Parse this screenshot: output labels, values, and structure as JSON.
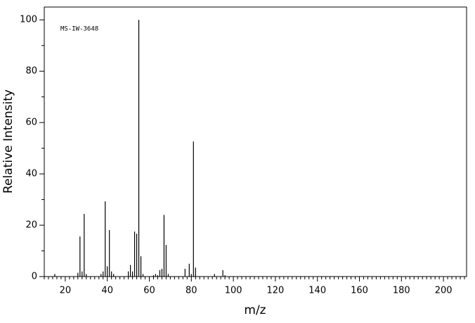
{
  "chart_data": {
    "type": "stem",
    "annotation": "MS-IW-3648",
    "xlabel": "m/z",
    "ylabel": "Relative Intensity",
    "x": [
      15,
      26,
      27,
      28,
      29,
      30,
      37,
      38,
      39,
      40,
      41,
      42,
      43,
      50,
      51,
      52,
      53,
      54,
      55,
      56,
      57,
      62,
      63,
      64,
      65,
      66,
      67,
      68,
      69,
      77,
      79,
      80,
      81,
      82,
      91,
      95,
      96
    ],
    "values": [
      1,
      1.5,
      15.6,
      2,
      24.4,
      1,
      1,
      2,
      29.3,
      4,
      18.1,
      2,
      1,
      2,
      4.5,
      2,
      17.5,
      16.7,
      100,
      7.9,
      1,
      0.5,
      1,
      0.5,
      2.5,
      3,
      24,
      12.3,
      1,
      3,
      5,
      1,
      52.6,
      3.5,
      1,
      2.5,
      0.5
    ],
    "color": "#000000",
    "xlim": [
      10,
      211
    ],
    "ylim": [
      0,
      105
    ],
    "xticks": [
      20,
      40,
      60,
      80,
      100,
      120,
      140,
      160,
      180,
      200
    ],
    "yticks": [
      0,
      20,
      40,
      60,
      80,
      100
    ],
    "xminorticks": [
      10,
      12,
      14,
      16,
      18,
      22,
      24,
      26,
      28,
      30,
      32,
      34,
      36,
      38,
      42,
      44,
      46,
      48,
      50,
      52,
      54,
      56,
      58,
      62,
      64,
      66,
      68,
      70,
      72,
      74,
      76,
      78,
      82,
      84,
      86,
      88,
      90,
      92,
      94,
      96,
      98,
      102,
      104,
      106,
      108,
      110,
      112,
      114,
      116,
      118,
      122,
      124,
      126,
      128,
      130,
      132,
      134,
      136,
      138,
      142,
      144,
      146,
      148,
      150,
      152,
      154,
      156,
      158,
      162,
      164,
      166,
      168,
      170,
      172,
      174,
      176,
      178,
      182,
      184,
      186,
      188,
      190,
      192,
      194,
      196,
      198,
      202,
      204,
      206,
      208,
      210
    ],
    "yminorticks": [
      10,
      30,
      50,
      70,
      90
    ]
  }
}
